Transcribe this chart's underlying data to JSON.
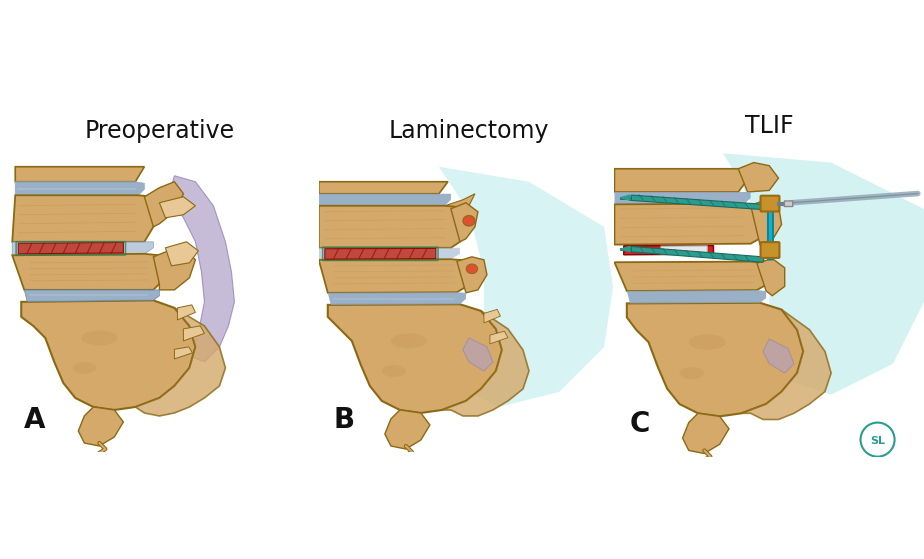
{
  "title_A": "Preoperative",
  "title_B": "Laminectomy",
  "title_C": "TLIF",
  "label_A": "A",
  "label_B": "B",
  "label_C": "C",
  "bg_color": "#ffffff",
  "title_fontsize": 17,
  "label_fontsize": 20,
  "label_color": "#111111",
  "title_color": "#111111",
  "fig_width": 9.24,
  "fig_height": 5.59,
  "bone_color": "#d4a96a",
  "bone_mid": "#c49558",
  "bone_dark": "#8b6914",
  "bone_light": "#e8c896",
  "disc_blue": "#8ea8c0",
  "disc_blue_light": "#aabfd4",
  "damaged_disc": "#c0392b",
  "teal_bg_light": "#c8eef0",
  "teal_bg": "#a0dde0",
  "nerve_purple": "#b0a0c8",
  "screw_teal": "#2a9d8f",
  "screw_dark": "#1a6a60",
  "implant_gold": "#c8922a",
  "implant_gold_dark": "#9a6a10",
  "implant_cyan": "#18b0c8",
  "implant_cyan_dark": "#0888a0",
  "tool_gray": "#9aacba",
  "tool_dark": "#6a8090",
  "red_cage": "#cc2222",
  "white_cage": "#e8e8e8",
  "outline": "#333300",
  "watermark_color": "#2a9d8f"
}
